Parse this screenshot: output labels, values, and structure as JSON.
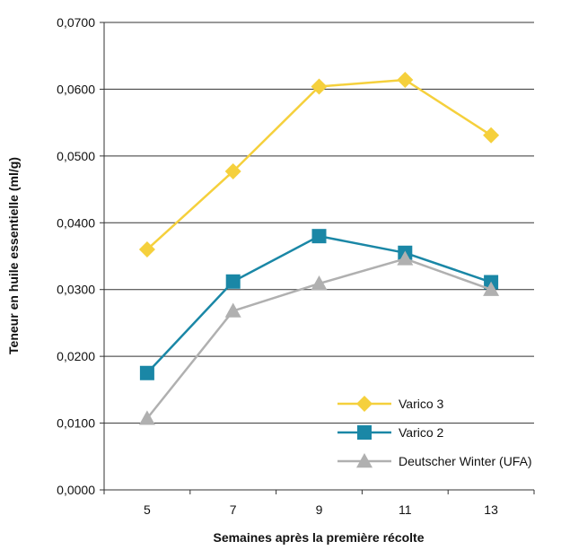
{
  "chart_data": {
    "type": "line",
    "title": "",
    "xlabel": "Semaines après la première récolte",
    "ylabel": "Teneur en huile essentielle (ml/g)",
    "categories": [
      "5",
      "7",
      "9",
      "11",
      "13"
    ],
    "ylim": [
      0,
      0.07
    ],
    "y_ticks": [
      "0,0000",
      "0,0100",
      "0,0200",
      "0,0300",
      "0,0400",
      "0,0500",
      "0,0600",
      "0,0700"
    ],
    "grid": "horizontal",
    "legend_position": "bottom-right",
    "series": [
      {
        "name": "Varico 3",
        "values": [
          0.036,
          0.0477,
          0.0604,
          0.0614,
          0.0531
        ],
        "color": "#F5D03C",
        "marker": "diamond"
      },
      {
        "name": "Varico 2",
        "values": [
          0.0175,
          0.0312,
          0.038,
          0.0355,
          0.0311
        ],
        "color": "#1A87A6",
        "marker": "square"
      },
      {
        "name": "Deutscher Winter (UFA)",
        "values": [
          0.0107,
          0.0268,
          0.0309,
          0.0346,
          0.03
        ],
        "color": "#B0B0B0",
        "marker": "triangle"
      }
    ]
  }
}
